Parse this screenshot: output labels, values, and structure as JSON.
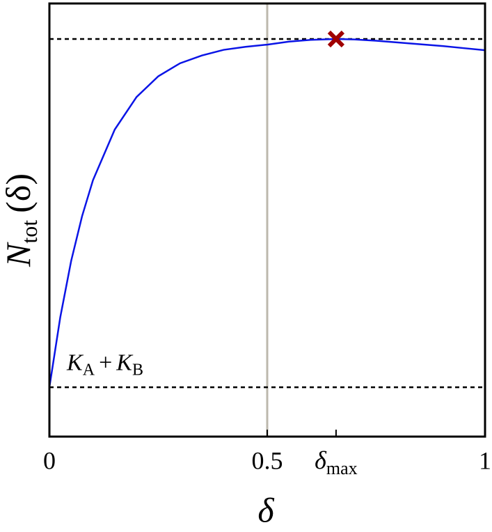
{
  "chart_data": {
    "type": "line",
    "xlabel": "δ",
    "ylabel": {
      "main": "N",
      "sub": "tot",
      "rest": "(δ)"
    },
    "annotation": {
      "k1": "K",
      "s1": "A",
      "op": "+",
      "k2": "K",
      "s2": "B",
      "x": 0.04,
      "y": 0.15
    },
    "xlim": [
      0,
      1
    ],
    "ylim": [
      0,
      1
    ],
    "xticks": [
      0,
      0.5,
      {
        "value": 0.658,
        "label": "δ",
        "label_sub": "max"
      },
      1
    ],
    "yticks": [],
    "hlines": [
      0.114,
      0.918
    ],
    "vlines": [
      0.5
    ],
    "marker": {
      "x": 0.658,
      "y": 0.918,
      "color": "#a00000"
    },
    "series": [
      {
        "color": "#0a14e6",
        "x": [
          0,
          0.025,
          0.05,
          0.075,
          0.1,
          0.15,
          0.2,
          0.25,
          0.3,
          0.35,
          0.4,
          0.45,
          0.5,
          0.55,
          0.6,
          0.658,
          0.7,
          0.75,
          0.8,
          0.85,
          0.9,
          0.95,
          1
        ],
        "values": [
          0.114,
          0.276,
          0.406,
          0.509,
          0.592,
          0.709,
          0.784,
          0.832,
          0.862,
          0.88,
          0.893,
          0.9,
          0.905,
          0.912,
          0.916,
          0.918,
          0.917,
          0.914,
          0.91,
          0.906,
          0.902,
          0.897,
          0.892
        ]
      }
    ]
  }
}
